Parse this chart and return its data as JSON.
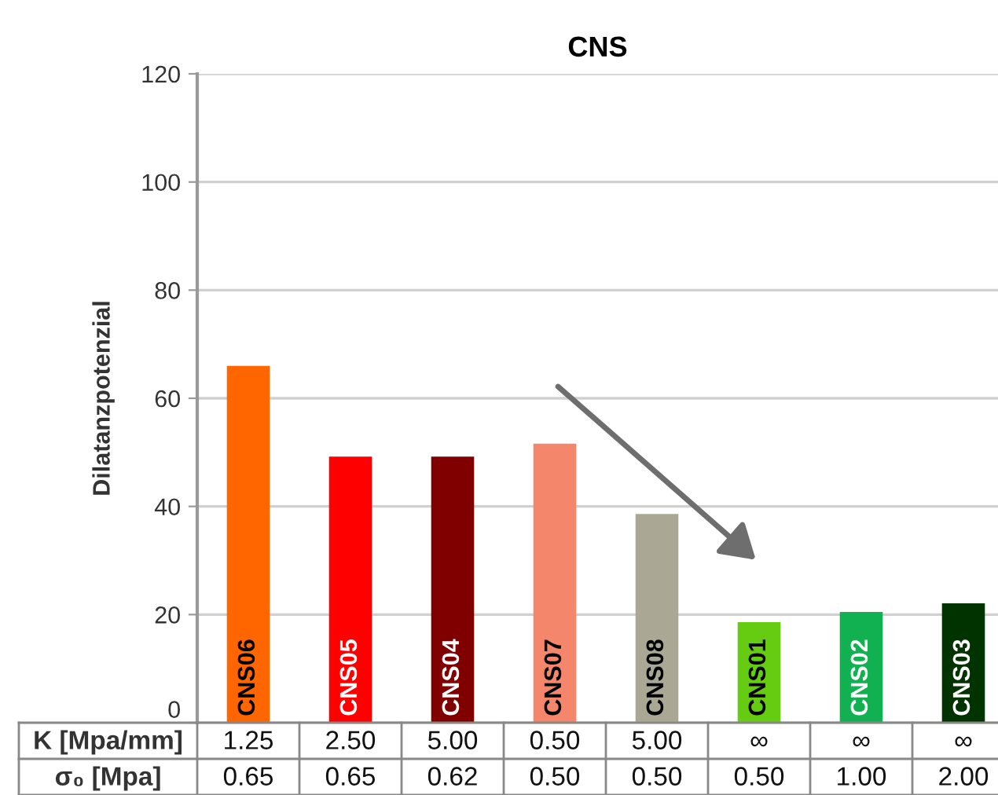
{
  "chart_data": {
    "type": "bar",
    "title": "CNS",
    "ylabel": "Dilatanzpotenzial",
    "categories": [
      "CNS06",
      "CNS05",
      "CNS04",
      "CNS07",
      "CNS08",
      "CNS01",
      "CNS02",
      "CNS03"
    ],
    "values": [
      66,
      49.2,
      49.2,
      51.6,
      38.6,
      18.6,
      20.5,
      22.1
    ],
    "colors": [
      "#ff6600",
      "#ff0000",
      "#800000",
      "#f4876b",
      "#aaa895",
      "#66cc11",
      "#11b050",
      "#003300"
    ],
    "ylim": [
      0,
      120
    ],
    "yticks": [
      0,
      20,
      40,
      60,
      80,
      100,
      120
    ],
    "grid": "y",
    "annotations": [
      "K [Mpa/mm]",
      "1.25",
      "2.50",
      "5.00",
      "0.50",
      "5.00",
      "∞",
      "∞",
      "∞",
      "σ₀ [Mpa]",
      "0.65",
      "0.65",
      "0.62",
      "0.50",
      "0.50",
      "0.50",
      "1.00",
      "2.00"
    ]
  }
}
